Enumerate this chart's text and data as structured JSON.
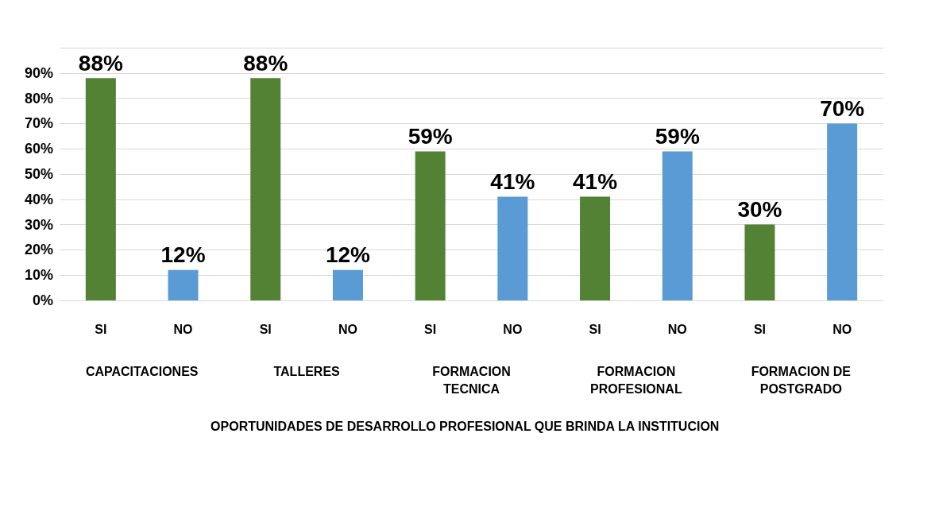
{
  "chart_data": {
    "type": "bar",
    "categories": [
      "SI",
      "NO",
      "SI",
      "NO",
      "SI",
      "NO",
      "SI",
      "NO",
      "SI",
      "NO"
    ],
    "values": [
      88,
      12,
      88,
      12,
      59,
      41,
      41,
      59,
      30,
      70
    ],
    "colors": [
      "#548235",
      "#5b9bd5",
      "#548235",
      "#5b9bd5",
      "#548235",
      "#5b9bd5",
      "#548235",
      "#5b9bd5",
      "#548235",
      "#5b9bd5"
    ],
    "value_labels": [
      "88%",
      "12%",
      "88%",
      "12%",
      "59%",
      "41%",
      "41%",
      "59%",
      "30%",
      "70%"
    ],
    "annotations": [
      "CAPACITACIONES",
      "TALLERES",
      "FORMACION\nTECNICA",
      "FORMACION\nPROFESIONAL",
      "FORMACION DE\nPOSTGRADO",
      "OPORTUNIDADES DE DESARROLLO PROFESIONAL QUE BRINDA LA INSTITUCION"
    ],
    "ylim": [
      0,
      100
    ],
    "yticks": [
      {
        "value": 0,
        "label": "0%"
      },
      {
        "value": 10,
        "label": "10%"
      },
      {
        "value": 20,
        "label": "20%"
      },
      {
        "value": 30,
        "label": "30%"
      },
      {
        "value": 40,
        "label": "40%"
      },
      {
        "value": 50,
        "label": "50%"
      },
      {
        "value": 60,
        "label": "60%"
      },
      {
        "value": 70,
        "label": "70%"
      },
      {
        "value": 80,
        "label": "80%"
      },
      {
        "value": 90,
        "label": "90%"
      },
      {
        "value": 100,
        "label": null
      }
    ],
    "grid": "y"
  }
}
